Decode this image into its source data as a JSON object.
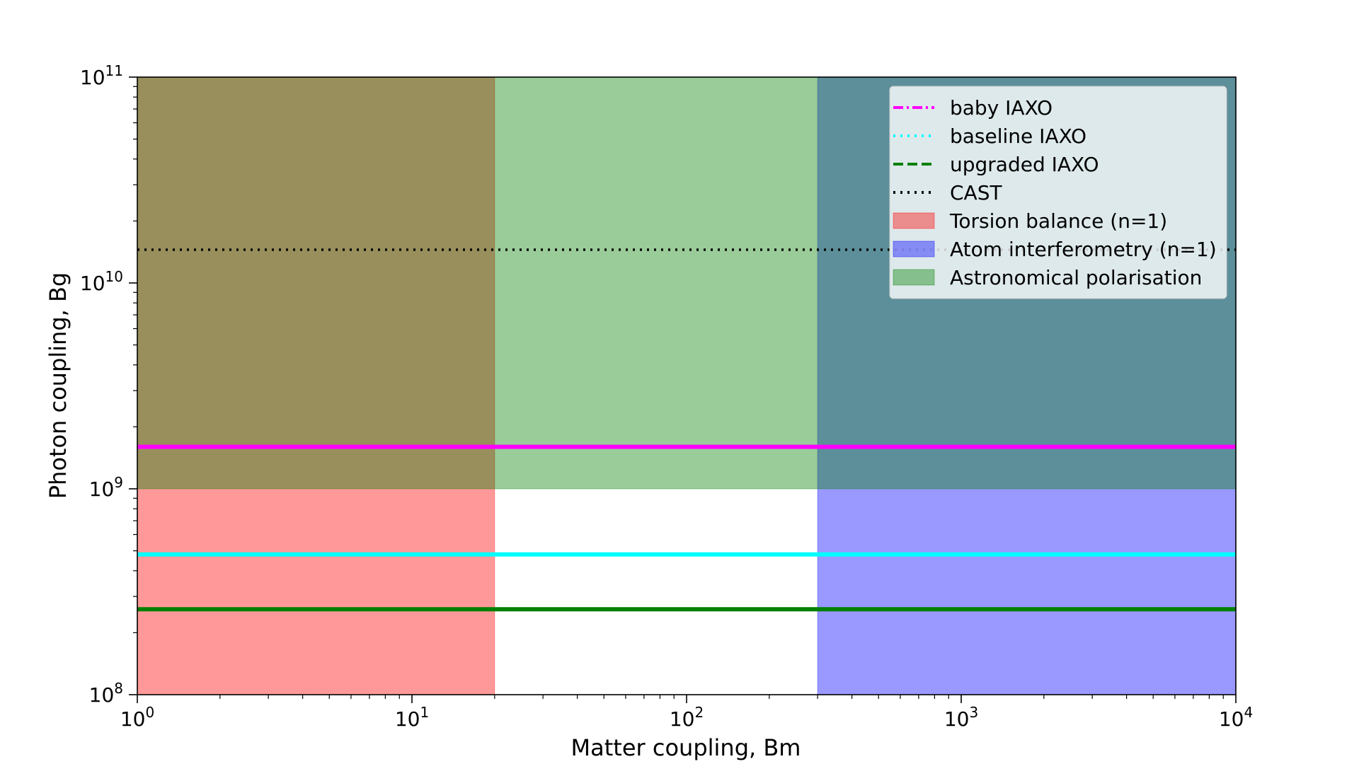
{
  "chart_data": {
    "type": "line",
    "xlabel": "Matter coupling, Bm",
    "ylabel": "Photon coupling, Bg",
    "xscale": "log",
    "yscale": "log",
    "xlim": [
      1,
      10000
    ],
    "ylim": [
      100000000,
      100000000000
    ],
    "x_ticks": [
      {
        "value": 1,
        "base": "10",
        "exp": "0"
      },
      {
        "value": 10,
        "base": "10",
        "exp": "1"
      },
      {
        "value": 100,
        "base": "10",
        "exp": "2"
      },
      {
        "value": 1000,
        "base": "10",
        "exp": "3"
      },
      {
        "value": 10000,
        "base": "10",
        "exp": "4"
      }
    ],
    "y_ticks": [
      {
        "value": 100000000,
        "base": "10",
        "exp": "8"
      },
      {
        "value": 1000000000,
        "base": "10",
        "exp": "9"
      },
      {
        "value": 10000000000,
        "base": "10",
        "exp": "10"
      },
      {
        "value": 100000000000,
        "base": "10",
        "exp": "11"
      }
    ],
    "regions": [
      {
        "name": "Torsion balance (n=1)",
        "color": "#ff0000",
        "alpha": 0.4,
        "x": [
          1,
          20
        ],
        "y": [
          100000000,
          100000000000
        ]
      },
      {
        "name": "Atom interferometry (n=1)",
        "color": "#0000ff",
        "alpha": 0.4,
        "x": [
          300,
          10000
        ],
        "y": [
          100000000,
          100000000000
        ]
      },
      {
        "name": "Astronomical polarisation",
        "color": "#008000",
        "alpha": 0.4,
        "x": [
          1,
          10000
        ],
        "y": [
          1000000000,
          100000000000
        ]
      }
    ],
    "series": [
      {
        "name": "baby IAXO",
        "color": "#ff00ff",
        "dash": "dashdot",
        "x": [
          1,
          10000
        ],
        "y": [
          1600000000,
          1600000000
        ]
      },
      {
        "name": "baseline IAXO",
        "color": "#00ffff",
        "dash": "dotted",
        "x": [
          1,
          10000
        ],
        "y": [
          480000000,
          480000000
        ]
      },
      {
        "name": "upgraded IAXO",
        "color": "#008000",
        "dash": "dashed",
        "x": [
          1,
          10000
        ],
        "y": [
          260000000,
          260000000
        ]
      },
      {
        "name": "CAST",
        "color": "#000000",
        "dash": "dotted",
        "x": [
          1,
          10000
        ],
        "y": [
          14500000000,
          14500000000
        ]
      }
    ],
    "legend": {
      "position": "top-right",
      "entries": [
        {
          "label": "baby IAXO",
          "kind": "line",
          "ref": "baby IAXO"
        },
        {
          "label": "baseline IAXO",
          "kind": "line",
          "ref": "baseline IAXO"
        },
        {
          "label": "upgraded IAXO",
          "kind": "line",
          "ref": "upgraded IAXO"
        },
        {
          "label": "CAST",
          "kind": "line",
          "ref": "CAST"
        },
        {
          "label": "Torsion balance (n=1)",
          "kind": "patch",
          "ref": "Torsion balance (n=1)"
        },
        {
          "label": "Atom interferometry (n=1)",
          "kind": "patch",
          "ref": "Atom interferometry (n=1)"
        },
        {
          "label": "Astronomical polarisation",
          "kind": "patch",
          "ref": "Astronomical polarisation"
        }
      ]
    }
  }
}
